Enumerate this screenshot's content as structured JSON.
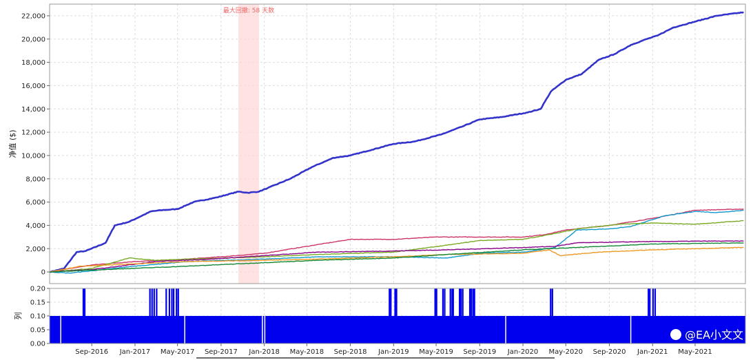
{
  "chart_data": [
    {
      "type": "line",
      "ylabel": "净值 ($)",
      "ylim": [
        -1000,
        23000
      ],
      "yticks": [
        0,
        2000,
        4000,
        6000,
        8000,
        10000,
        12000,
        14000,
        16000,
        18000,
        20000,
        22000
      ],
      "ytick_labels": [
        "0",
        "2,000",
        "4,000",
        "6,000",
        "8,000",
        "10,000",
        "12,000",
        "14,000",
        "16,000",
        "18,000",
        "20,000",
        "22,000"
      ],
      "xlim": [
        "2016-05-05",
        "2021-09-20"
      ],
      "xticks": [
        "2016-09-01",
        "2017-01-01",
        "2017-05-01",
        "2017-09-01",
        "2018-01-01",
        "2018-05-01",
        "2018-09-01",
        "2019-01-01",
        "2019-05-01",
        "2019-09-01",
        "2020-01-01",
        "2020-05-01",
        "2020-09-01",
        "2021-01-01",
        "2021-05-01"
      ],
      "xtick_labels": [
        "Sep-2016",
        "Jan-2017",
        "May-2017",
        "Sep-2017",
        "Jan-2018",
        "May-2018",
        "Sep-2018",
        "Jan-2019",
        "May-2019",
        "Sep-2019",
        "Jan-2020",
        "May-2020",
        "Sep-2020",
        "Jan-2021",
        "May-2021"
      ],
      "grid": true,
      "drawdown_band": {
        "start": "2017-10-20",
        "end": "2017-12-17",
        "label": "最大回撤: 58 天数"
      },
      "series": [
        {
          "color": "#3333cc",
          "x": [
            "2016-05-05",
            "2016-06-15",
            "2016-07-20",
            "2016-08-15",
            "2016-10-10",
            "2016-11-05",
            "2016-12-15",
            "2017-02-15",
            "2017-03-15",
            "2017-05-01",
            "2017-06-15",
            "2017-08-20",
            "2017-10-20",
            "2017-11-15",
            "2017-12-17",
            "2018-01-10",
            "2018-03-15",
            "2018-05-15",
            "2018-07-15",
            "2018-09-01",
            "2018-11-01",
            "2019-01-01",
            "2019-03-01",
            "2019-05-15",
            "2019-07-15",
            "2019-09-01",
            "2019-11-01",
            "2020-01-15",
            "2020-02-20",
            "2020-03-20",
            "2020-05-01",
            "2020-06-15",
            "2020-08-01",
            "2020-09-15",
            "2020-11-01",
            "2020-12-15",
            "2021-01-15",
            "2021-03-01",
            "2021-05-01",
            "2021-07-01",
            "2021-09-15"
          ],
          "values": [
            0,
            300,
            1700,
            1800,
            2500,
            4000,
            4300,
            5200,
            5300,
            5400,
            6000,
            6400,
            6900,
            6800,
            6900,
            7200,
            8000,
            9000,
            9800,
            10000,
            10500,
            11000,
            11200,
            11800,
            12500,
            13100,
            13300,
            13700,
            14000,
            15500,
            16500,
            17000,
            18200,
            18700,
            19500,
            20000,
            20300,
            21000,
            21500,
            22000,
            22300
          ]
        },
        {
          "color": "#cc3366",
          "x": [
            "2016-05-05",
            "2016-09-01",
            "2017-01-01",
            "2017-05-01",
            "2017-09-01",
            "2018-01-01",
            "2018-05-01",
            "2018-09-01",
            "2019-01-01",
            "2019-05-01",
            "2019-09-01",
            "2020-01-01",
            "2020-03-01",
            "2020-05-01",
            "2020-09-01",
            "2021-01-01",
            "2021-05-01",
            "2021-09-15"
          ],
          "values": [
            0,
            600,
            900,
            1050,
            1300,
            1600,
            2200,
            2800,
            2800,
            3000,
            3000,
            3000,
            3200,
            3600,
            4000,
            4600,
            5300,
            5400
          ]
        },
        {
          "color": "#1199cc",
          "x": [
            "2016-05-05",
            "2016-07-01",
            "2017-01-01",
            "2017-06-01",
            "2018-01-01",
            "2018-06-01",
            "2019-01-01",
            "2019-06-01",
            "2019-09-01",
            "2020-01-01",
            "2020-04-01",
            "2020-06-01",
            "2020-09-01",
            "2020-11-01",
            "2021-02-01",
            "2021-05-01",
            "2021-07-01",
            "2021-09-15"
          ],
          "values": [
            0,
            -100,
            500,
            900,
            1100,
            1300,
            1300,
            1200,
            1600,
            1700,
            2100,
            3600,
            3700,
            3900,
            4800,
            5200,
            5100,
            5300
          ]
        },
        {
          "color": "#77aa22",
          "x": [
            "2016-05-05",
            "2016-09-01",
            "2016-12-15",
            "2017-03-01",
            "2017-06-01",
            "2018-01-01",
            "2018-06-01",
            "2019-01-01",
            "2019-06-01",
            "2019-09-01",
            "2020-01-01",
            "2020-04-01",
            "2020-06-01",
            "2020-10-01",
            "2021-01-01",
            "2021-05-01",
            "2021-09-15"
          ],
          "values": [
            0,
            300,
            1200,
            1000,
            1100,
            1300,
            1500,
            1700,
            2300,
            2700,
            2800,
            3300,
            3700,
            4100,
            4200,
            4100,
            4400
          ]
        },
        {
          "color": "#880088",
          "x": [
            "2016-05-05",
            "2016-09-01",
            "2017-03-01",
            "2017-08-01",
            "2018-01-01",
            "2018-06-01",
            "2019-01-01",
            "2019-06-01",
            "2020-01-01",
            "2020-04-01",
            "2020-06-01",
            "2020-12-01",
            "2021-06-01",
            "2021-09-15"
          ],
          "values": [
            0,
            200,
            900,
            1100,
            1400,
            1700,
            1800,
            1900,
            2100,
            2200,
            2500,
            2600,
            2650,
            2650
          ]
        },
        {
          "color": "#ee9922",
          "x": [
            "2016-05-05",
            "2016-08-01",
            "2017-01-01",
            "2017-06-01",
            "2018-01-01",
            "2018-06-01",
            "2019-01-01",
            "2019-06-01",
            "2020-01-01",
            "2020-03-15",
            "2020-04-15",
            "2020-08-01",
            "2021-01-01",
            "2021-05-01",
            "2021-09-15"
          ],
          "values": [
            0,
            500,
            700,
            900,
            1000,
            1100,
            1300,
            1500,
            1600,
            1900,
            1400,
            1700,
            1900,
            2000,
            2100
          ]
        },
        {
          "color": "#118833",
          "x": [
            "2016-05-05",
            "2016-10-01",
            "2017-06-01",
            "2018-01-01",
            "2018-06-01",
            "2019-01-01",
            "2019-06-01",
            "2020-01-01",
            "2020-06-01",
            "2021-01-01",
            "2021-09-15"
          ],
          "values": [
            0,
            200,
            500,
            800,
            1000,
            1200,
            1500,
            1900,
            2100,
            2400,
            2500
          ]
        }
      ]
    },
    {
      "type": "bar",
      "ylabel": "列",
      "ylim": [
        0,
        0.2
      ],
      "yticks": [
        0,
        0.05,
        0.1,
        0.15,
        0.2
      ],
      "ytick_labels": [
        "0.00",
        "0.05",
        "0.10",
        "0.15",
        "0.20"
      ],
      "color": "#0000ee",
      "baseline_value": 0.1,
      "baseline_range": [
        "2016-05-05",
        "2021-09-20"
      ],
      "spike_value": 0.2,
      "spikes": [
        "2016-08-08",
        "2016-08-12",
        "2017-02-12",
        "2017-02-18",
        "2017-02-24",
        "2017-03-03",
        "2017-03-30",
        "2017-04-08",
        "2017-04-15",
        "2017-04-20",
        "2017-04-28",
        "2017-05-03",
        "2018-12-20",
        "2018-12-24",
        "2019-01-05",
        "2019-01-09",
        "2019-04-28",
        "2019-05-02",
        "2019-05-20",
        "2019-05-25",
        "2019-06-10",
        "2019-06-15",
        "2019-06-18",
        "2019-07-06",
        "2019-07-10",
        "2019-07-15",
        "2019-08-04",
        "2019-08-08",
        "2019-08-13",
        "2019-08-17",
        "2020-03-19",
        "2020-03-24",
        "2020-12-20",
        "2020-12-24",
        "2021-01-02",
        "2021-01-08"
      ],
      "gaps": [
        "2016-06-04",
        "2017-05-20",
        "2017-12-25",
        "2018-01-01",
        "2019-11-12",
        "2020-10-30"
      ]
    }
  ],
  "watermark": {
    "text": "@EA小文文"
  }
}
